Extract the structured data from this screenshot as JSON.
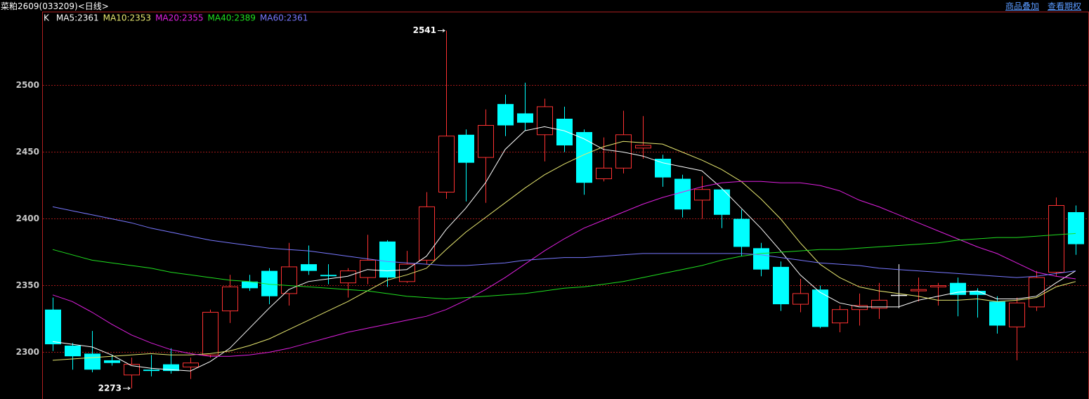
{
  "header": {
    "title": "菜粕2609(033209)<日线>",
    "links": [
      "商品叠加",
      "查看期权"
    ]
  },
  "chart_data": {
    "type": "candlestick",
    "grid": true,
    "ylim": [
      2265,
      2555
    ],
    "yticks": [
      2300,
      2350,
      2400,
      2450,
      2500
    ],
    "up_color": "#ff3232",
    "down_color": "#00ffff",
    "flat_color": "#ffffff",
    "candles": {
      "name": "K",
      "open": [
        2332,
        2305,
        2299,
        2294,
        2283,
        2287,
        2291,
        2289,
        2298,
        2331,
        2353,
        2361,
        2344,
        2366,
        2358,
        2352,
        2356,
        2383,
        2353,
        2369,
        2420,
        2463,
        2446,
        2486,
        2479,
        2463,
        2475,
        2465,
        2430,
        2438,
        2453,
        2445,
        2430,
        2414,
        2422,
        2400,
        2378,
        2364,
        2336,
        2347,
        2322,
        2332,
        2333,
        2343,
        2346,
        2349,
        2352,
        2346,
        2338,
        2319,
        2334,
        2360,
        2405
      ],
      "high": [
        2341,
        2307,
        2316,
        2298,
        2296,
        2298,
        2303,
        2296,
        2332,
        2358,
        2358,
        2363,
        2382,
        2380,
        2366,
        2363,
        2388,
        2384,
        2376,
        2420,
        2541,
        2467,
        2482,
        2493,
        2502,
        2490,
        2484,
        2467,
        2461,
        2481,
        2477,
        2448,
        2433,
        2432,
        2423,
        2407,
        2382,
        2368,
        2355,
        2350,
        2335,
        2344,
        2352,
        2366,
        2356,
        2352,
        2356,
        2348,
        2342,
        2341,
        2361,
        2416,
        2410
      ],
      "low": [
        2301,
        2287,
        2285,
        2290,
        2273,
        2282,
        2284,
        2280,
        2296,
        2322,
        2346,
        2336,
        2335,
        2358,
        2351,
        2341,
        2351,
        2349,
        2352,
        2366,
        2415,
        2413,
        2412,
        2462,
        2466,
        2443,
        2450,
        2418,
        2428,
        2434,
        2445,
        2424,
        2401,
        2400,
        2393,
        2372,
        2357,
        2331,
        2330,
        2318,
        2315,
        2320,
        2325,
        2333,
        2338,
        2335,
        2327,
        2326,
        2314,
        2294,
        2331,
        2357,
        2373
      ],
      "close": [
        2306,
        2297,
        2287,
        2292,
        2291,
        2286,
        2286,
        2292,
        2330,
        2349,
        2348,
        2342,
        2364,
        2361,
        2357,
        2361,
        2369,
        2356,
        2366,
        2409,
        2462,
        2442,
        2470,
        2470,
        2472,
        2484,
        2455,
        2427,
        2438,
        2463,
        2455,
        2431,
        2407,
        2422,
        2403,
        2379,
        2362,
        2336,
        2344,
        2319,
        2332,
        2335,
        2339,
        2343,
        2347,
        2350,
        2343,
        2343,
        2320,
        2337,
        2356,
        2410,
        2381
      ]
    },
    "series": [
      {
        "name": "MA5:2361",
        "color": "#ffffff",
        "values": [
          2308,
          2306,
          2304,
          2298,
          2290,
          2288,
          2287,
          2286,
          2293,
          2303,
          2318,
          2333,
          2347,
          2353,
          2355,
          2357,
          2362,
          2361,
          2362,
          2372,
          2392,
          2408,
          2427,
          2452,
          2466,
          2469,
          2466,
          2460,
          2452,
          2450,
          2447,
          2442,
          2439,
          2436,
          2423,
          2408,
          2393,
          2376,
          2358,
          2345,
          2337,
          2334,
          2334,
          2334,
          2339,
          2342,
          2345,
          2346,
          2340,
          2340,
          2342,
          2352,
          2361
        ]
      },
      {
        "name": "MA10:2353",
        "color": "#e8e870",
        "values": [
          2294,
          2295,
          2296,
          2297,
          2298,
          2299,
          2298,
          2298,
          2299,
          2301,
          2305,
          2310,
          2317,
          2324,
          2331,
          2338,
          2346,
          2354,
          2358,
          2363,
          2377,
          2390,
          2401,
          2412,
          2423,
          2433,
          2441,
          2448,
          2454,
          2458,
          2457,
          2456,
          2450,
          2444,
          2437,
          2428,
          2415,
          2400,
          2382,
          2366,
          2356,
          2349,
          2346,
          2344,
          2342,
          2339,
          2339,
          2340,
          2338,
          2339,
          2341,
          2349,
          2353
        ]
      },
      {
        "name": "MA20:2355",
        "color": "#e020e0",
        "values": [
          2343,
          2338,
          2330,
          2321,
          2313,
          2307,
          2302,
          2299,
          2297,
          2297,
          2298,
          2300,
          2303,
          2307,
          2311,
          2315,
          2318,
          2321,
          2324,
          2327,
          2332,
          2339,
          2347,
          2356,
          2366,
          2376,
          2385,
          2393,
          2399,
          2405,
          2411,
          2416,
          2420,
          2424,
          2427,
          2428,
          2428,
          2427,
          2427,
          2425,
          2421,
          2414,
          2409,
          2403,
          2397,
          2391,
          2385,
          2379,
          2374,
          2367,
          2360,
          2357,
          2355
        ]
      },
      {
        "name": "MA40:2389",
        "color": "#20e020",
        "values": [
          2377,
          2373,
          2369,
          2367,
          2365,
          2363,
          2360,
          2358,
          2356,
          2354,
          2353,
          2351,
          2350,
          2349,
          2348,
          2347,
          2346,
          2344,
          2342,
          2341,
          2340,
          2341,
          2342,
          2343,
          2344,
          2346,
          2348,
          2349,
          2351,
          2353,
          2356,
          2359,
          2362,
          2365,
          2369,
          2372,
          2374,
          2375,
          2376,
          2377,
          2377,
          2378,
          2379,
          2380,
          2381,
          2382,
          2384,
          2385,
          2386,
          2386,
          2387,
          2388,
          2389
        ]
      },
      {
        "name": "MA60:2361",
        "color": "#7878ff",
        "values": [
          2409,
          2406,
          2403,
          2400,
          2397,
          2393,
          2390,
          2387,
          2384,
          2382,
          2380,
          2378,
          2377,
          2376,
          2374,
          2372,
          2370,
          2368,
          2367,
          2366,
          2365,
          2365,
          2366,
          2367,
          2369,
          2370,
          2371,
          2371,
          2372,
          2373,
          2374,
          2374,
          2374,
          2374,
          2374,
          2374,
          2373,
          2371,
          2369,
          2367,
          2366,
          2365,
          2363,
          2362,
          2361,
          2360,
          2359,
          2358,
          2357,
          2356,
          2357,
          2359,
          2361
        ]
      }
    ],
    "annotations": [
      {
        "value": 2541,
        "label": "2541"
      },
      {
        "value": 2273,
        "label": "2273"
      }
    ]
  }
}
